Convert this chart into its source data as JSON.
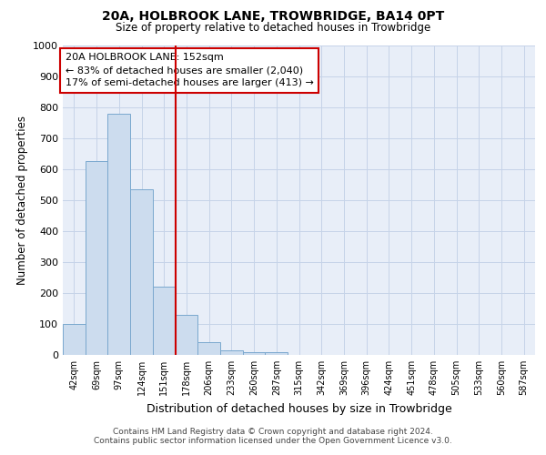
{
  "title": "20A, HOLBROOK LANE, TROWBRIDGE, BA14 0PT",
  "subtitle": "Size of property relative to detached houses in Trowbridge",
  "xlabel": "Distribution of detached houses by size in Trowbridge",
  "ylabel": "Number of detached properties",
  "bar_labels": [
    "42sqm",
    "69sqm",
    "97sqm",
    "124sqm",
    "151sqm",
    "178sqm",
    "206sqm",
    "233sqm",
    "260sqm",
    "287sqm",
    "315sqm",
    "342sqm",
    "369sqm",
    "396sqm",
    "424sqm",
    "451sqm",
    "478sqm",
    "505sqm",
    "533sqm",
    "560sqm",
    "587sqm"
  ],
  "bar_values": [
    100,
    625,
    780,
    535,
    220,
    130,
    40,
    15,
    10,
    10,
    0,
    0,
    0,
    0,
    0,
    0,
    0,
    0,
    0,
    0,
    0
  ],
  "bar_color": "#ccdcee",
  "bar_edge_color": "#7aa8ce",
  "grid_color": "#c5d3e8",
  "bg_color": "#e8eef8",
  "vline_color": "#cc0000",
  "vline_pos": 4.5,
  "annotation_text": "20A HOLBROOK LANE: 152sqm\n← 83% of detached houses are smaller (2,040)\n17% of semi-detached houses are larger (413) →",
  "annotation_box_color": "white",
  "annotation_box_edge": "#cc0000",
  "ylim": [
    0,
    1000
  ],
  "yticks": [
    0,
    100,
    200,
    300,
    400,
    500,
    600,
    700,
    800,
    900,
    1000
  ],
  "footer_line1": "Contains HM Land Registry data © Crown copyright and database right 2024.",
  "footer_line2": "Contains public sector information licensed under the Open Government Licence v3.0."
}
